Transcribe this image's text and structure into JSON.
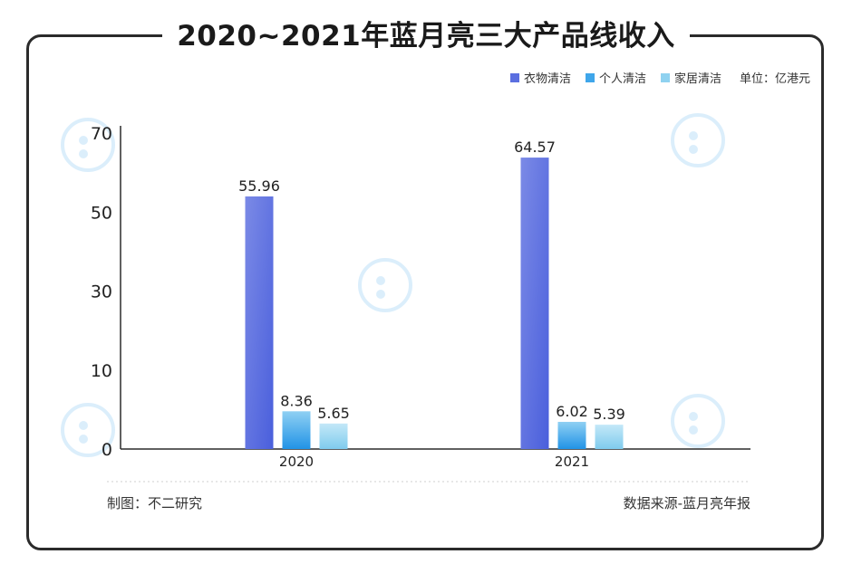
{
  "title": "2020~2021年蓝月亮三大产品线收入",
  "unit_label": "单位：亿港元",
  "credit": "制图：不二研究",
  "source": "数据来源-蓝月亮年报",
  "watermark_text": "不二研究",
  "colors": {
    "series1": "#5b6fe0",
    "series2": "#3fa6ea",
    "series3": "#8fd2f0",
    "axis": "#2b2b2b",
    "frame": "#2b2b2b"
  },
  "chart_data": {
    "type": "bar",
    "categories": [
      "2020",
      "2021"
    ],
    "series": [
      {
        "name": "衣物清洁",
        "values": [
          55.96,
          64.57
        ]
      },
      {
        "name": "个人清洁",
        "values": [
          8.36,
          6.02
        ]
      },
      {
        "name": "家居清洁",
        "values": [
          5.65,
          5.39
        ]
      }
    ],
    "data_labels": [
      [
        "55.96",
        "64.57"
      ],
      [
        "8.36",
        "6.02"
      ],
      [
        "5.65",
        "5.39"
      ]
    ],
    "yticks": [
      "0",
      "10",
      "30",
      "50",
      "70"
    ],
    "ylim": [
      0,
      70
    ],
    "legend_position": "top-right",
    "grid": false
  }
}
